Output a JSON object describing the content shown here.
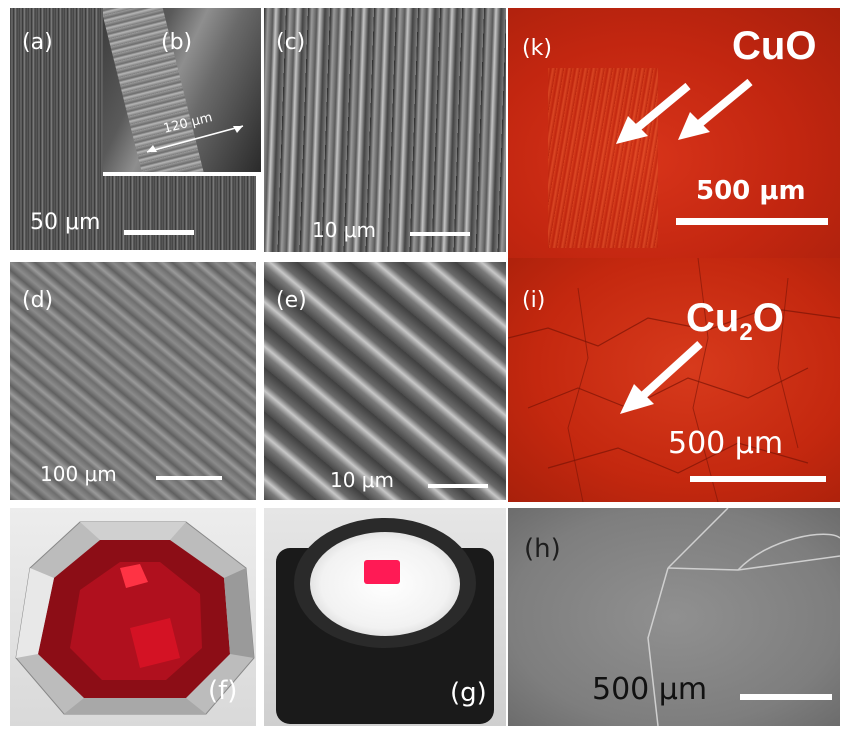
{
  "panels": {
    "a": {
      "label": "(a)",
      "scale": "50 μm"
    },
    "b": {
      "label": "(b)",
      "measure": "120 μm"
    },
    "c": {
      "label": "(c)",
      "scale": "10 μm"
    },
    "d": {
      "label": "(d)",
      "scale": "100 μm"
    },
    "e": {
      "label": "(e)",
      "scale": "10 μm"
    },
    "f": {
      "label": "(f)"
    },
    "g": {
      "label": "(g)"
    },
    "h": {
      "label": "(h)",
      "scale": "500 μm"
    },
    "k": {
      "label": "(k)",
      "scale": "500 μm",
      "phase": "CuO"
    },
    "i": {
      "label": "(i)",
      "scale": "500 μm",
      "phase_main": "Cu",
      "phase_sub": "2",
      "phase_tail": "O"
    }
  },
  "colors": {
    "sem_gray": "#7a7a7a",
    "oxide_red": "#c8260f",
    "ruby": "#b0101e",
    "background": "#ffffff"
  }
}
